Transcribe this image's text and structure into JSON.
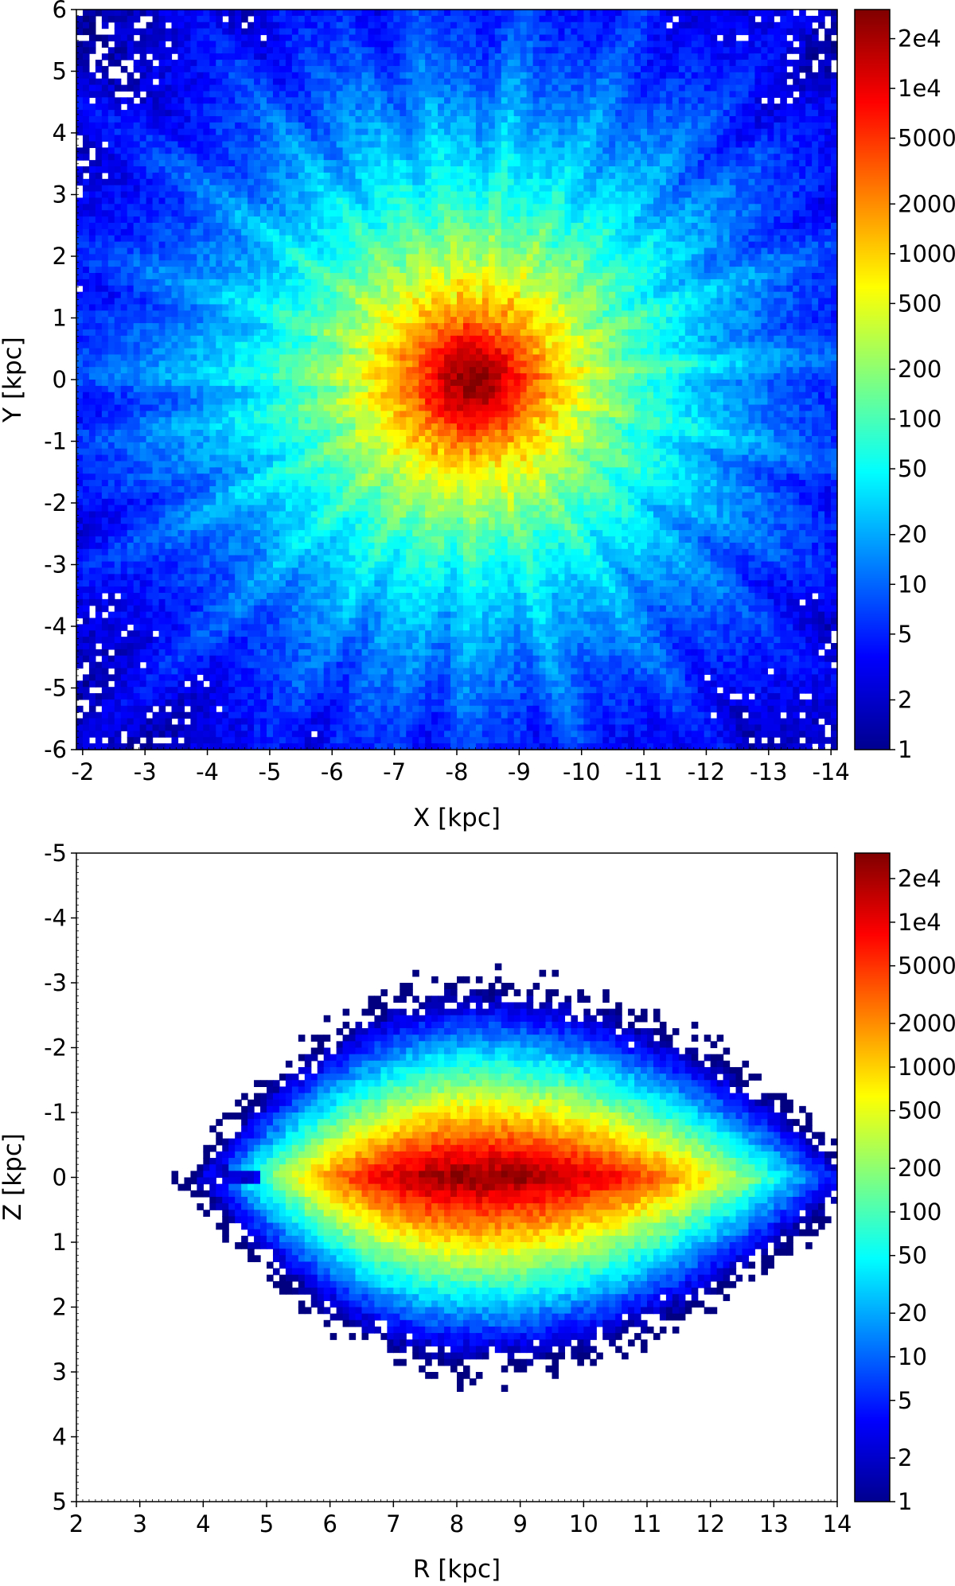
{
  "chart_data": [
    {
      "type": "heatmap",
      "id": "top",
      "xlabel": "X [kpc]",
      "ylabel": "Y [kpc]",
      "xlim": [
        -1.9,
        -14.1
      ],
      "ylim": [
        6,
        -6
      ],
      "x_axis_reversed": true,
      "y_axis_inverted": true,
      "xticks": [
        -2,
        -3,
        -4,
        -5,
        -6,
        -7,
        -8,
        -9,
        -10,
        -11,
        -12,
        -13,
        -14
      ],
      "xtick_labels": [
        "-2",
        "-3",
        "-4",
        "-5",
        "-6",
        "-7",
        "-8",
        "-9",
        "-10",
        "-11",
        "-12",
        "-13",
        "-14"
      ],
      "yticks": [
        -6,
        -5,
        -4,
        -3,
        -2,
        -1,
        0,
        1,
        2,
        3,
        4,
        5,
        6
      ],
      "ytick_labels": [
        "-6",
        "-5",
        "-4",
        "-3",
        "-2",
        "-1",
        "0",
        "1",
        "2",
        "3",
        "4",
        "5",
        "6"
      ],
      "density_peak": {
        "x": -8.3,
        "y": 0,
        "count": 30000
      },
      "colorbar": {
        "scale": "log",
        "range": [
          1,
          30000
        ],
        "colormap": "jet",
        "ticks": [
          1,
          2,
          5,
          10,
          20,
          50,
          100,
          200,
          500,
          1000,
          2000,
          5000,
          10000,
          20000
        ],
        "tick_labels": [
          "1",
          "2",
          "5",
          "10",
          "20",
          "50",
          "100",
          "200",
          "500",
          "1000",
          "2000",
          "5000",
          "1e4",
          "2e4"
        ]
      }
    },
    {
      "type": "heatmap",
      "id": "bottom",
      "xlabel": "R [kpc]",
      "ylabel": "Z [kpc]",
      "xlim": [
        2,
        14
      ],
      "ylim": [
        -5,
        5
      ],
      "xticks": [
        2,
        3,
        4,
        5,
        6,
        7,
        8,
        9,
        10,
        11,
        12,
        13,
        14
      ],
      "xtick_labels": [
        "2",
        "3",
        "4",
        "5",
        "6",
        "7",
        "8",
        "9",
        "10",
        "11",
        "12",
        "13",
        "14"
      ],
      "yticks": [
        5,
        4,
        3,
        2,
        1,
        0,
        -1,
        -2,
        -3,
        -4,
        -5
      ],
      "ytick_labels": [
        "5",
        "4",
        "3",
        "2",
        "1",
        "0",
        "-1",
        "-2",
        "-3",
        "-4",
        "-5"
      ],
      "density_peak": {
        "x": 8.3,
        "y": 0,
        "count": 30000
      },
      "colorbar": {
        "scale": "log",
        "range": [
          1,
          30000
        ],
        "colormap": "jet",
        "ticks": [
          1,
          2,
          5,
          10,
          20,
          50,
          100,
          200,
          500,
          1000,
          2000,
          5000,
          10000,
          20000
        ],
        "tick_labels": [
          "1",
          "2",
          "5",
          "10",
          "20",
          "50",
          "100",
          "200",
          "500",
          "1000",
          "2000",
          "5000",
          "1e4",
          "2e4"
        ]
      }
    }
  ]
}
